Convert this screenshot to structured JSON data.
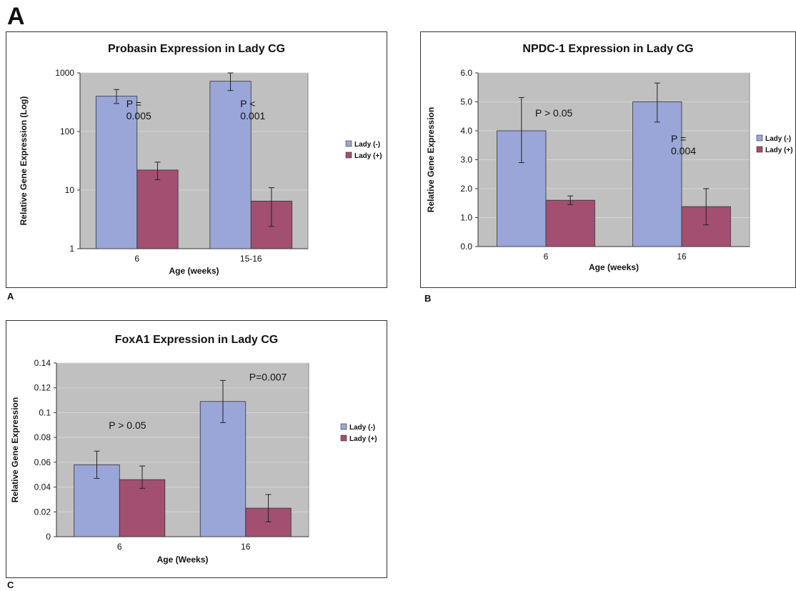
{
  "figure": {
    "label": "A",
    "panel_labels": [
      "A",
      "B",
      "C"
    ]
  },
  "colors": {
    "lady_minus": "#9aa6d8",
    "lady_plus": "#a24f72",
    "plot_bg": "#c0c0c0",
    "grid": "#d4d4d4"
  },
  "chart_data": [
    {
      "type": "bar",
      "title": "Probasin Expression in Lady CG",
      "xlabel": "Age (weeks)",
      "ylabel": "Relative Gene Expression (Log)",
      "yscale": "log",
      "ylim": [
        1,
        1000
      ],
      "yticks": [
        1,
        10,
        100,
        1000
      ],
      "ytick_labels": [
        "1",
        "10",
        "100",
        "1000"
      ],
      "categories": [
        "6",
        "15-16"
      ],
      "series": [
        {
          "name": "Lady (-)",
          "values": [
            400,
            720
          ],
          "err_low": [
            300,
            500
          ],
          "err_high": [
            520,
            1000
          ]
        },
        {
          "name": "Lady (+)",
          "values": [
            22,
            6.5
          ],
          "err_low": [
            15,
            2.4
          ],
          "err_high": [
            30,
            11
          ]
        }
      ],
      "annotations": [
        {
          "lines": [
            "P =",
            "0.005"
          ],
          "category": 0,
          "y": 260
        },
        {
          "lines": [
            "P <",
            "0.001"
          ],
          "category": 1,
          "y": 260
        }
      ],
      "legend": "right"
    },
    {
      "type": "bar",
      "title": "NPDC-1 Expression in Lady CG",
      "xlabel": "Age (weeks)",
      "ylabel": "Relative Gene Expression",
      "yscale": "linear",
      "ylim": [
        0,
        6
      ],
      "yticks": [
        0,
        1,
        2,
        3,
        4,
        5,
        6
      ],
      "ytick_labels": [
        "0.0",
        "1.0",
        "2.0",
        "3.0",
        "4.0",
        "5.0",
        "6.0"
      ],
      "categories": [
        "6",
        "16"
      ],
      "series": [
        {
          "name": "Lady (-)",
          "values": [
            4.0,
            5.0
          ],
          "err_low": [
            2.9,
            4.3
          ],
          "err_high": [
            5.15,
            5.65
          ]
        },
        {
          "name": "Lady (+)",
          "values": [
            1.6,
            1.38
          ],
          "err_low": [
            1.45,
            0.75
          ],
          "err_high": [
            1.75,
            2.0
          ]
        }
      ],
      "annotations": [
        {
          "lines": [
            "P > 0.05"
          ],
          "category": 0,
          "y": 4.5
        },
        {
          "lines": [
            "P =",
            "0.004"
          ],
          "category": 1,
          "y": 3.6
        }
      ],
      "legend": "right"
    },
    {
      "type": "bar",
      "title": "FoxA1 Expression in Lady CG",
      "xlabel": "Age (Weeks)",
      "ylabel": "Relative Gene Expression",
      "yscale": "linear",
      "ylim": [
        0,
        0.14
      ],
      "yticks": [
        0,
        0.02,
        0.04,
        0.06,
        0.08,
        0.1,
        0.12,
        0.14
      ],
      "ytick_labels": [
        "0",
        "0.02",
        "0.04",
        "0.06",
        "0.08",
        "0.1",
        "0.12",
        "0.14"
      ],
      "categories": [
        "6",
        "16"
      ],
      "series": [
        {
          "name": "Lady (-)",
          "values": [
            0.058,
            0.109
          ],
          "err_low": [
            0.047,
            0.092
          ],
          "err_high": [
            0.069,
            0.126
          ]
        },
        {
          "name": "Lady (+)",
          "values": [
            0.046,
            0.023
          ],
          "err_low": [
            0.039,
            0.012
          ],
          "err_high": [
            0.057,
            0.034
          ]
        }
      ],
      "annotations": [
        {
          "lines": [
            "P > 0.05"
          ],
          "category": 0,
          "y": 0.087
        },
        {
          "lines": [
            "P=0.007"
          ],
          "category": 1,
          "y": 0.126
        }
      ],
      "legend": "right"
    }
  ]
}
